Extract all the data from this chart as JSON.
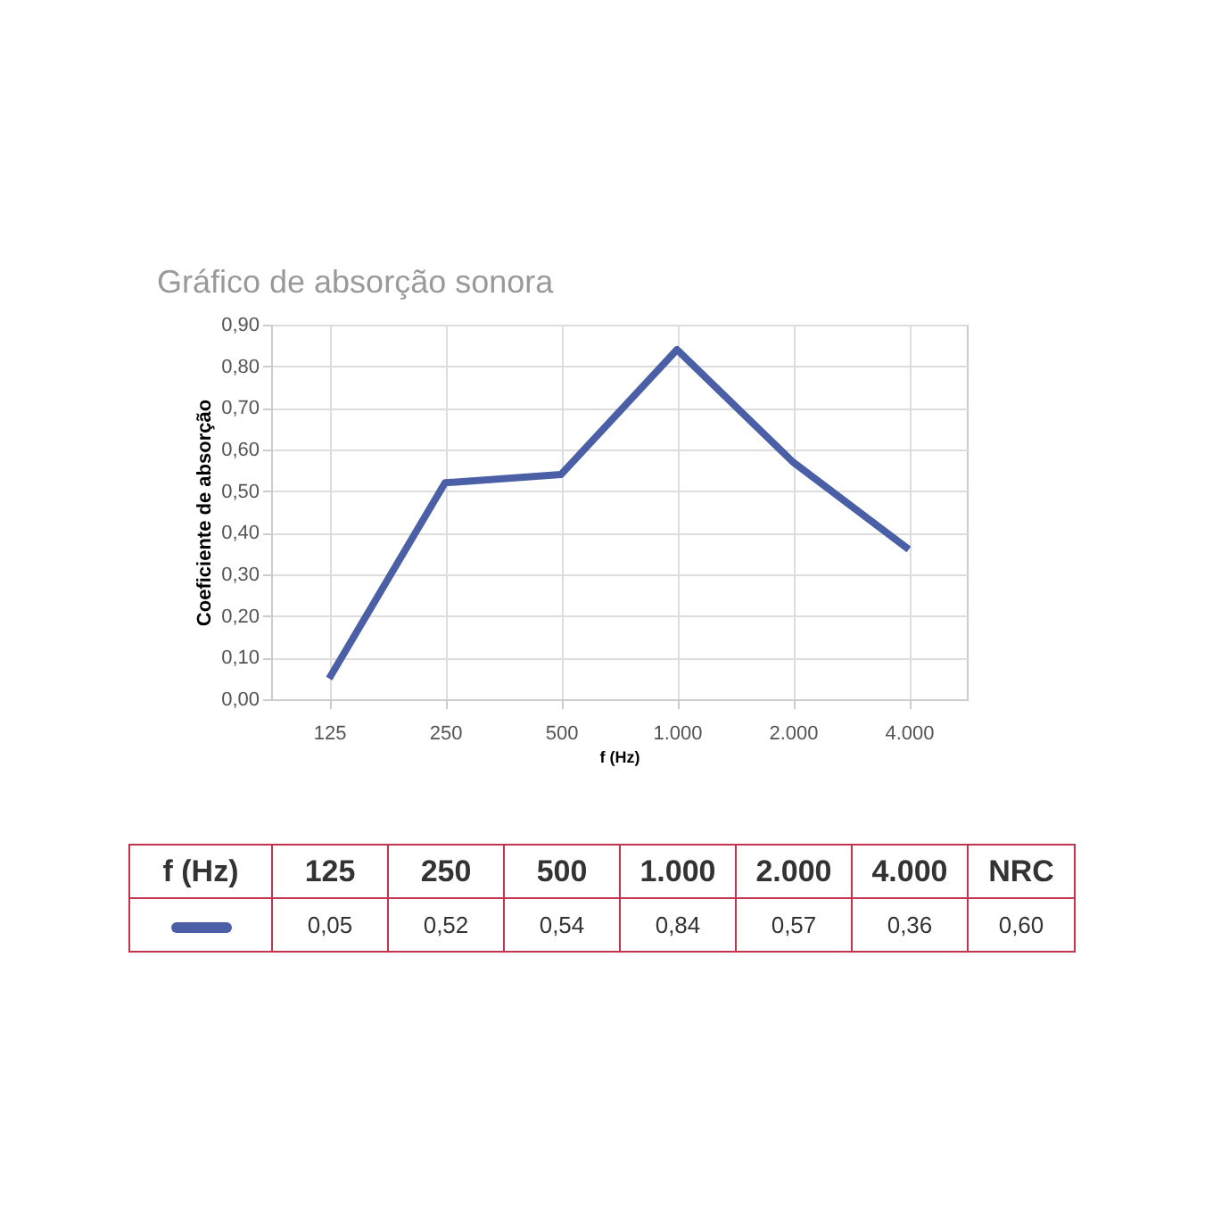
{
  "chart_data": {
    "type": "line",
    "title": "Gráfico de absorção sonora",
    "xlabel": "f (Hz)",
    "ylabel": "Coeficiente de absorção",
    "categories": [
      "125",
      "250",
      "500",
      "1.000",
      "2.000",
      "4.000"
    ],
    "series": [
      {
        "color": "#4a5fa5",
        "values": [
          0.05,
          0.52,
          0.54,
          0.84,
          0.57,
          0.36
        ],
        "value_labels": [
          "0,05",
          "0,52",
          "0,54",
          "0,84",
          "0,57",
          "0,36"
        ]
      }
    ],
    "ylim": [
      0,
      0.9
    ],
    "yticks": [
      {
        "value": 0,
        "label": "0,00"
      },
      {
        "value": 0.1,
        "label": "0,10"
      },
      {
        "value": 0.2,
        "label": "0,20"
      },
      {
        "value": 0.3,
        "label": "0,30"
      },
      {
        "value": 0.4,
        "label": "0,40"
      },
      {
        "value": 0.5,
        "label": "0,50"
      },
      {
        "value": 0.6,
        "label": "0,60"
      },
      {
        "value": 0.7,
        "label": "0,70"
      },
      {
        "value": 0.8,
        "label": "0,80"
      },
      {
        "value": 0.9,
        "label": "0,90"
      }
    ],
    "grid": true,
    "marker": "none",
    "line_style": "solid",
    "annotations": [
      "NRC",
      "0,60"
    ]
  }
}
